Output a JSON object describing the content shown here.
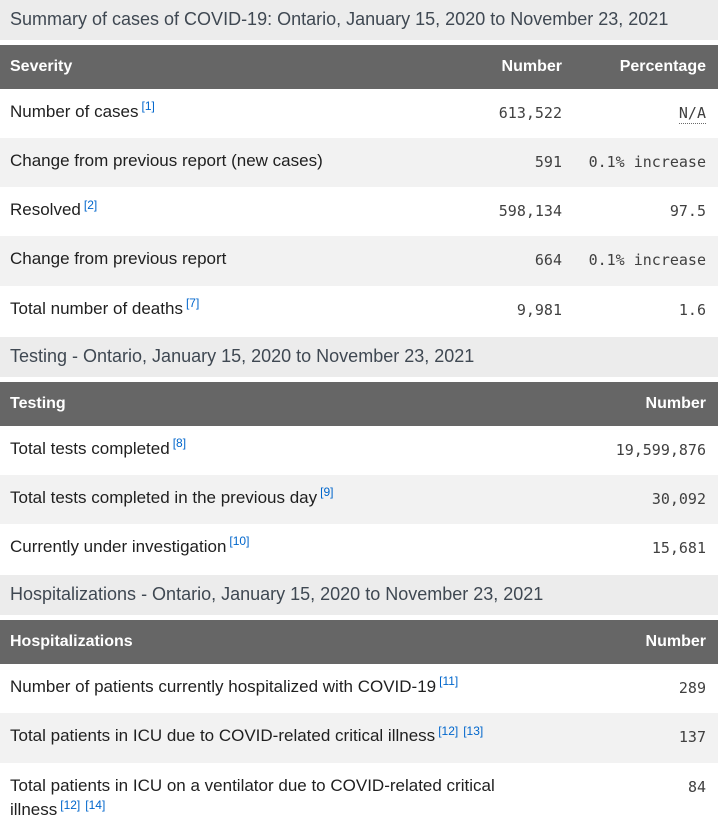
{
  "page_title": "Summary of cases of COVID-19: Ontario, January 15, 2020 to November 23, 2021",
  "colors": {
    "header_background": "#666666",
    "header_text": "#ffffff",
    "caption_background": "#ececec",
    "caption_text": "#3f4852",
    "alternate_row_background": "#f2f2f2",
    "body_text": "#1f1f1f",
    "numeric_text": "#404040",
    "footnote_link": "#0066cc"
  },
  "tables": [
    {
      "id": "severity",
      "caption": "Summary of cases of COVID-19: Ontario, January 15, 2020 to November 23, 2021",
      "headers": [
        "Severity",
        "Number",
        "Percentage"
      ],
      "rows": [
        {
          "label": "Number of cases",
          "footnotes": [
            "[1]"
          ],
          "number": "613,522",
          "percentage": "N/A",
          "percentage_abbr": true
        },
        {
          "label": "Change from previous report (new cases)",
          "footnotes": [],
          "number": "591",
          "percentage": "0.1% increase"
        },
        {
          "label": "Resolved",
          "footnotes": [
            "[2]"
          ],
          "number": "598,134",
          "percentage": "97.5"
        },
        {
          "label": "Change from previous report",
          "footnotes": [],
          "number": "664",
          "percentage": "0.1% increase"
        },
        {
          "label": "Total number of deaths",
          "footnotes": [
            "[7]"
          ],
          "number": "9,981",
          "percentage": "1.6"
        }
      ]
    },
    {
      "id": "testing",
      "caption": "Testing - Ontario, January 15, 2020 to November 23, 2021",
      "headers": [
        "Testing",
        "Number"
      ],
      "rows": [
        {
          "label": "Total tests completed",
          "footnotes": [
            "[8]"
          ],
          "number": "19,599,876"
        },
        {
          "label": "Total tests completed in the previous day",
          "footnotes": [
            "[9]"
          ],
          "number": "30,092"
        },
        {
          "label": "Currently under investigation",
          "footnotes": [
            "[10]"
          ],
          "number": "15,681"
        }
      ]
    },
    {
      "id": "hospitalizations",
      "caption": "Hospitalizations - Ontario, January 15, 2020 to November 23, 2021",
      "headers": [
        "Hospitalizations",
        "Number"
      ],
      "rows": [
        {
          "label": "Number of patients currently hospitalized with COVID-19",
          "footnotes": [
            "[11]"
          ],
          "number": "289"
        },
        {
          "label": "Total patients in ICU due to COVID-related critical illness",
          "footnotes": [
            "[12]",
            "[13]"
          ],
          "number": "137"
        },
        {
          "label": "Total patients in ICU on a ventilator due to COVID-related critical illness",
          "footnotes": [
            "[12]",
            "[14]"
          ],
          "number": "84"
        }
      ]
    }
  ]
}
